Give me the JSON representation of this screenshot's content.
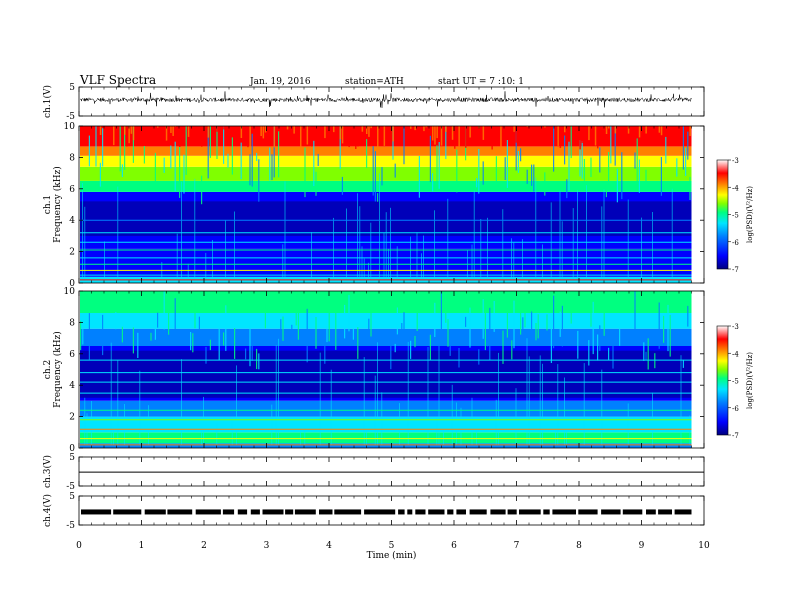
{
  "header": {
    "title": "VLF Spectra",
    "date": "Jan. 19, 2016",
    "station": "station=ATH",
    "start": "start UT = 7 :10: 1"
  },
  "chart_data": [
    {
      "type": "line",
      "panel": "ch1-waveform",
      "ylabel": "ch.1(V)",
      "ylim": [
        -5,
        5
      ],
      "yticks": [
        "5",
        "-5"
      ],
      "xlim": [
        0,
        10
      ],
      "data_range": [
        0,
        9.8
      ],
      "color": "#000000"
    },
    {
      "type": "heatmap",
      "panel": "ch1-spectrogram",
      "ylabel": "ch.1 Frequency (kHz)",
      "ylim": [
        0,
        10
      ],
      "yticks": [
        "0",
        "2",
        "4",
        "6",
        "8",
        "10"
      ],
      "xlim": [
        0,
        10
      ],
      "data_range": [
        0,
        9.8
      ],
      "colorbar": {
        "label": "log(PSD)(V²/Hz)",
        "ticks": [
          "-3",
          "-4",
          "-5",
          "-6",
          "-7"
        ],
        "range": [
          -7,
          -3
        ]
      }
    },
    {
      "type": "heatmap",
      "panel": "ch2-spectrogram",
      "ylabel": "ch.2 Frequency (kHz)",
      "ylim": [
        0,
        10
      ],
      "yticks": [
        "0",
        "2",
        "4",
        "6",
        "8",
        "10"
      ],
      "xlim": [
        0,
        10
      ],
      "data_range": [
        0,
        9.8
      ],
      "colorbar": {
        "label": "log(PSD)(V²/Hz)",
        "ticks": [
          "-3",
          "-4",
          "-5",
          "-6",
          "-7"
        ],
        "range": [
          -7,
          -3
        ]
      }
    },
    {
      "type": "line",
      "panel": "ch3-waveform",
      "ylabel": "ch.3(V)",
      "ylim": [
        -5,
        5
      ],
      "yticks": [
        "5",
        "-5"
      ],
      "xlim": [
        0,
        10
      ]
    },
    {
      "type": "line",
      "panel": "ch4-waveform",
      "ylabel": "ch.4(V)",
      "ylim": [
        -5,
        5
      ],
      "yticks": [
        "5",
        "-5"
      ],
      "xlim": [
        0,
        10
      ],
      "data_range": [
        0,
        9.8
      ],
      "level_v": -0.5
    }
  ],
  "xaxis": {
    "label": "Time (min)",
    "ticks": [
      "0",
      "1",
      "2",
      "3",
      "4",
      "5",
      "6",
      "7",
      "8",
      "9",
      "10"
    ],
    "range": [
      0,
      10
    ]
  },
  "colormap": [
    "#000080",
    "#0000ff",
    "#0080ff",
    "#00e5ff",
    "#00ff80",
    "#80ff00",
    "#ffff00",
    "#ff8000",
    "#ff0000",
    "#ffffff"
  ]
}
